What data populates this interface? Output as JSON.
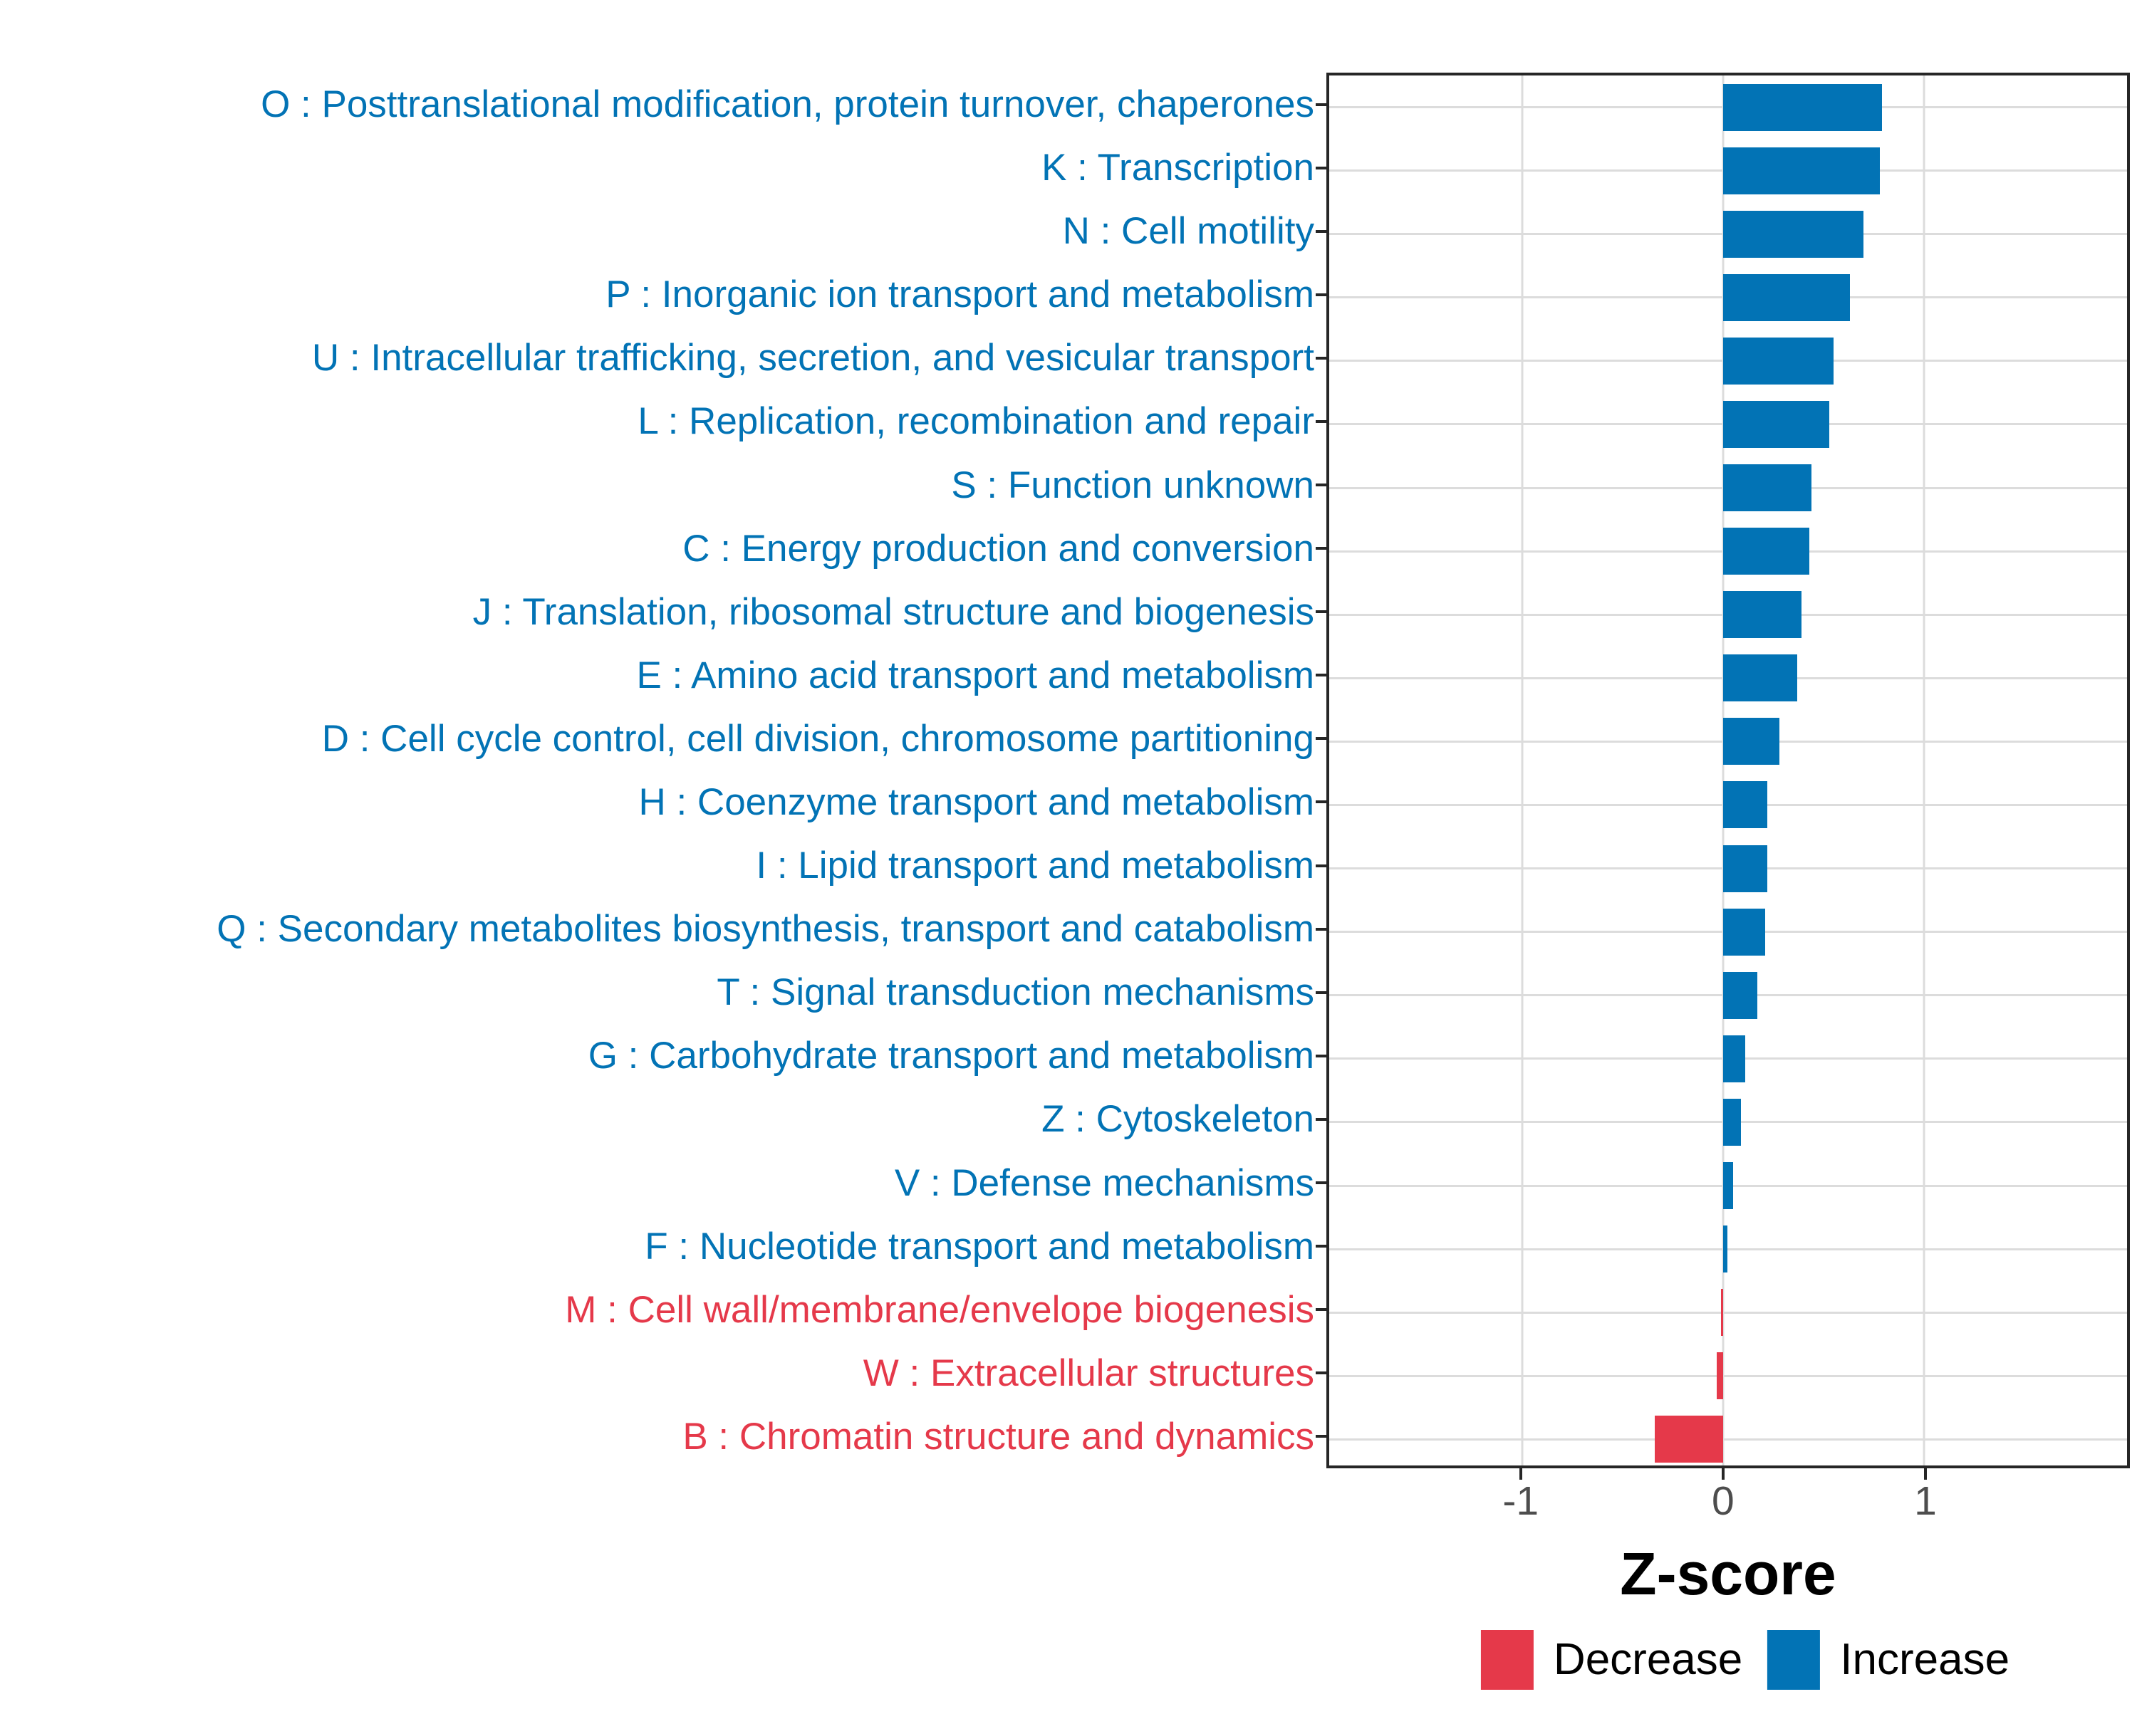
{
  "figure": {
    "background": "#FFFFFF"
  },
  "chart_data": {
    "type": "bar",
    "orientation": "horizontal",
    "title": "",
    "xlabel": "Z-score",
    "ylabel": "",
    "xlim": [
      -1.96,
      2.01
    ],
    "x_ticks": [
      -1,
      0,
      1
    ],
    "x_tick_labels": [
      "-1",
      "0",
      "1"
    ],
    "grid": "major vertical lines at x ticks, light horizontal line at each category",
    "legend_position": "bottom-center",
    "colors": {
      "Increase": "#0273B5",
      "Decrease": "#E5394A",
      "gridline": "#DCDCDC",
      "panel_border": "#262626",
      "tick_mark": "#262626",
      "x_tick_label": "#4D4D4D",
      "axis_title": "#000000"
    },
    "legend": [
      {
        "label": "Decrease",
        "direction": "Decrease"
      },
      {
        "label": "Increase",
        "direction": "Increase"
      }
    ],
    "items": [
      {
        "code": "O",
        "label": "O : Posttranslational modification, protein turnover, chaperones",
        "value": 0.79,
        "direction": "Increase"
      },
      {
        "code": "K",
        "label": "K : Transcription",
        "value": 0.78,
        "direction": "Increase"
      },
      {
        "code": "N",
        "label": "N : Cell motility",
        "value": 0.7,
        "direction": "Increase"
      },
      {
        "code": "P",
        "label": "P : Inorganic ion transport and metabolism",
        "value": 0.63,
        "direction": "Increase"
      },
      {
        "code": "U",
        "label": "U : Intracellular trafficking, secretion, and vesicular transport",
        "value": 0.55,
        "direction": "Increase"
      },
      {
        "code": "L",
        "label": "L : Replication, recombination and repair",
        "value": 0.53,
        "direction": "Increase"
      },
      {
        "code": "S",
        "label": "S : Function unknown",
        "value": 0.44,
        "direction": "Increase"
      },
      {
        "code": "C",
        "label": "C : Energy production and conversion",
        "value": 0.43,
        "direction": "Increase"
      },
      {
        "code": "J",
        "label": "J : Translation, ribosomal structure and biogenesis",
        "value": 0.39,
        "direction": "Increase"
      },
      {
        "code": "E",
        "label": "E : Amino acid transport and metabolism",
        "value": 0.37,
        "direction": "Increase"
      },
      {
        "code": "D",
        "label": "D : Cell cycle control, cell division, chromosome partitioning",
        "value": 0.28,
        "direction": "Increase"
      },
      {
        "code": "H",
        "label": "H : Coenzyme transport and metabolism",
        "value": 0.22,
        "direction": "Increase"
      },
      {
        "code": "I",
        "label": "I : Lipid transport and metabolism",
        "value": 0.22,
        "direction": "Increase"
      },
      {
        "code": "Q",
        "label": "Q : Secondary metabolites biosynthesis, transport and catabolism",
        "value": 0.21,
        "direction": "Increase"
      },
      {
        "code": "T",
        "label": "T : Signal transduction mechanisms",
        "value": 0.17,
        "direction": "Increase"
      },
      {
        "code": "G",
        "label": "G : Carbohydrate transport and metabolism",
        "value": 0.11,
        "direction": "Increase"
      },
      {
        "code": "Z",
        "label": "Z : Cytoskeleton",
        "value": 0.09,
        "direction": "Increase"
      },
      {
        "code": "V",
        "label": "V : Defense mechanisms",
        "value": 0.05,
        "direction": "Increase"
      },
      {
        "code": "F",
        "label": "F : Nucleotide transport and metabolism",
        "value": 0.02,
        "direction": "Increase"
      },
      {
        "code": "M",
        "label": "M : Cell wall/membrane/envelope biogenesis",
        "value": -0.01,
        "direction": "Decrease"
      },
      {
        "code": "W",
        "label": "W : Extracellular structures",
        "value": -0.03,
        "direction": "Decrease"
      },
      {
        "code": "B",
        "label": "B : Chromatin structure and dynamics",
        "value": -0.34,
        "direction": "Decrease"
      }
    ]
  }
}
